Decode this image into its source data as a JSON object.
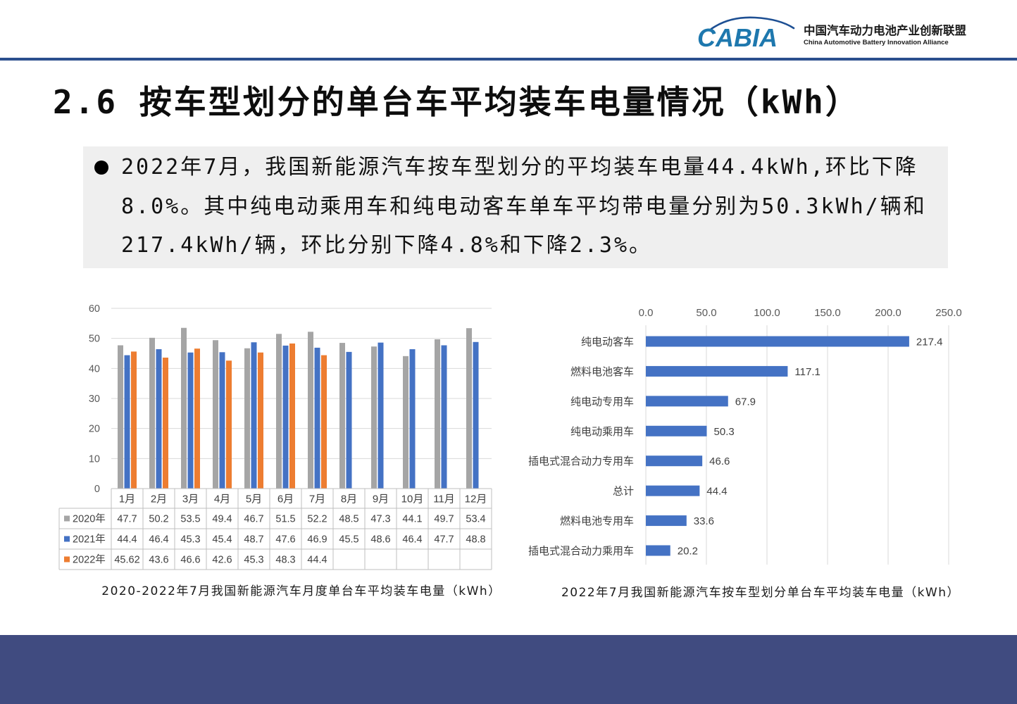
{
  "header": {
    "logo_text": "CABIA",
    "org_name_cn": "中国汽车动力电池产业创新联盟",
    "org_name_en": "China Automotive Battery Innovation Alliance"
  },
  "title": "2.6 按车型划分的单台车平均装车电量情况（kWh）",
  "summary": {
    "lines": [
      "2022年7月，我国新能源汽车按车型划分的平均装车电量44.4kWh,环比下降",
      "8.0%。其中纯电动乘用车和纯电动客车单车平均带电量分别为50.3kWh/辆和",
      "217.4kWh/辆，环比分别下降4.8%和下降2.3%。"
    ]
  },
  "colors": {
    "logo_primary": "#1E78AE",
    "logo_secondary": "#1D4F93",
    "header_rule": "#2B4F8E",
    "summary_background": "#EFEFEF",
    "footer_band": "#404B80",
    "gridline": "#D9D9D9",
    "table_border": "#BFBFBF"
  },
  "chart_data": [
    {
      "type": "bar",
      "orientation": "vertical",
      "title": "2020-2022年7月我国新能源汽车月度单台车平均装车电量（kWh）",
      "categories": [
        "1月",
        "2月",
        "3月",
        "4月",
        "5月",
        "6月",
        "7月",
        "8月",
        "9月",
        "10月",
        "11月",
        "12月"
      ],
      "series": [
        {
          "name": "2020年",
          "color": "#A5A5A5",
          "values": [
            47.7,
            50.2,
            53.5,
            49.4,
            46.7,
            51.5,
            52.2,
            48.5,
            47.3,
            44.1,
            49.7,
            53.4
          ]
        },
        {
          "name": "2021年",
          "color": "#4472C4",
          "values": [
            44.4,
            46.4,
            45.3,
            45.4,
            48.7,
            47.6,
            46.9,
            45.5,
            48.6,
            46.4,
            47.7,
            48.8
          ]
        },
        {
          "name": "2022年",
          "color": "#ED7D31",
          "values": [
            45.62,
            43.6,
            46.6,
            42.6,
            45.3,
            48.3,
            44.4,
            null,
            null,
            null,
            null,
            null
          ]
        }
      ],
      "ylim": [
        0,
        60
      ],
      "yticks": [
        0,
        10,
        20,
        30,
        40,
        50,
        60
      ],
      "grid": true,
      "legend": "bottom",
      "data_table": true
    },
    {
      "type": "bar",
      "orientation": "horizontal",
      "title": "2022年7月我国新能源汽车按车型划分单台车平均装车电量（kWh）",
      "categories": [
        "纯电动客车",
        "燃料电池客车",
        "纯电动专用车",
        "纯电动乘用车",
        "插电式混合动力专用车",
        "总计",
        "燃料电池专用车",
        "插电式混合动力乘用车"
      ],
      "values": [
        217.4,
        117.1,
        67.9,
        50.3,
        46.6,
        44.4,
        33.6,
        20.2
      ],
      "color": "#4472C4",
      "xlim": [
        0,
        250
      ],
      "xtick_labels": [
        "0.0",
        "50.0",
        "100.0",
        "150.0",
        "200.0",
        "250.0"
      ],
      "x_axis_position": "top",
      "grid": true
    }
  ]
}
